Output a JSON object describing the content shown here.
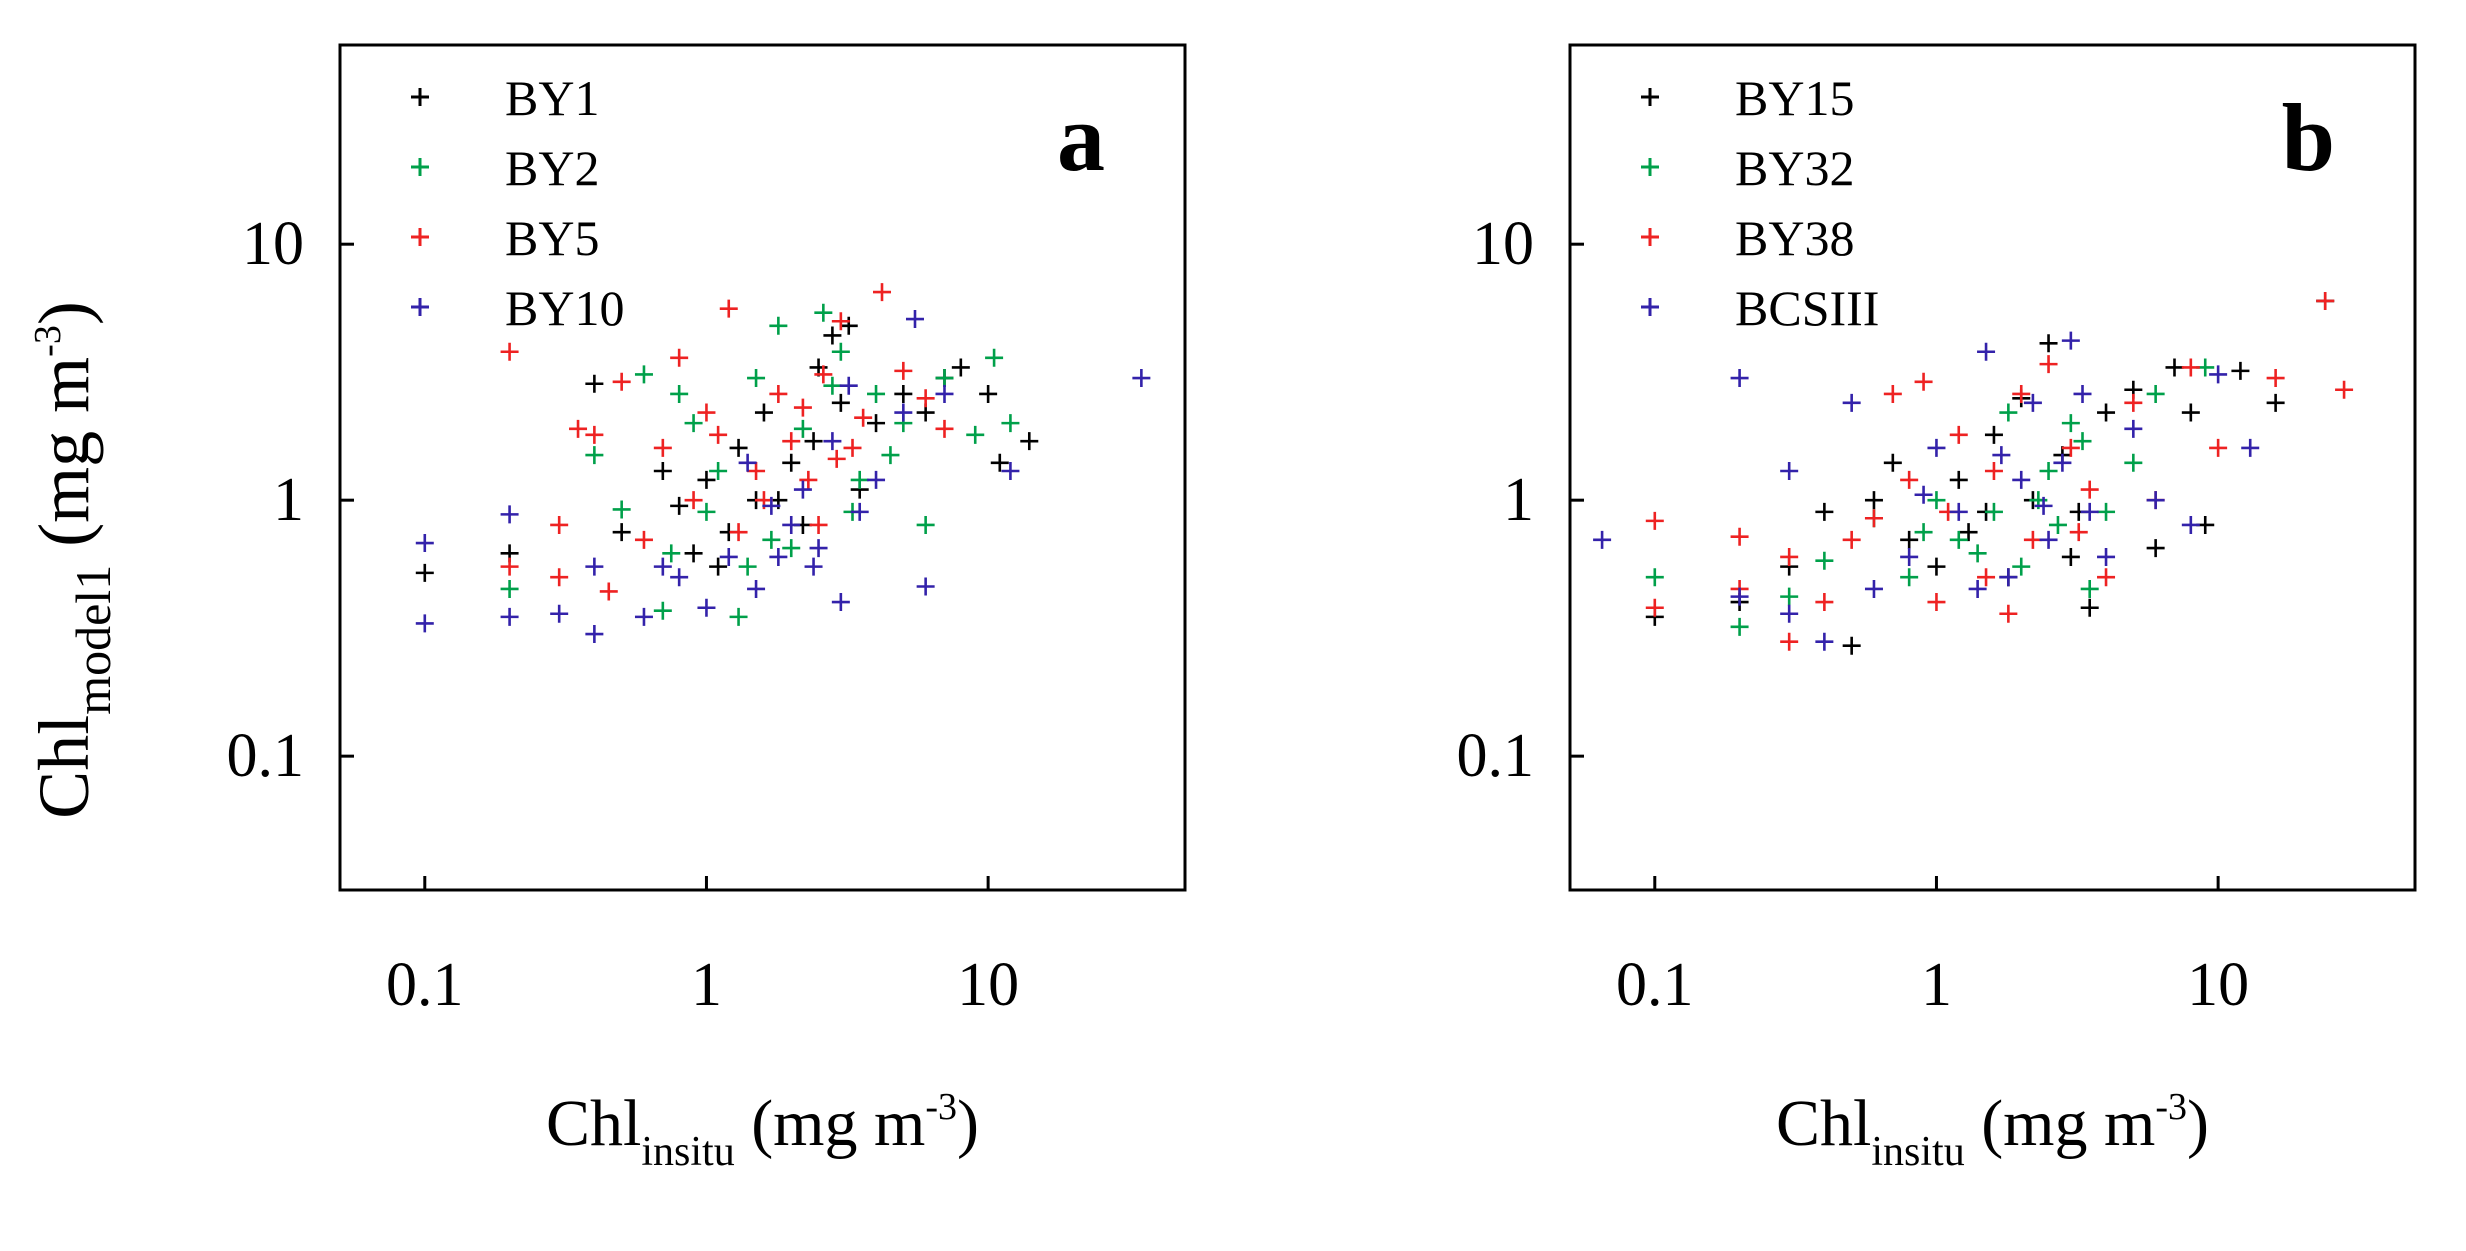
{
  "chart_data": [
    {
      "type": "scatter",
      "panel_label": "a",
      "xscale": "log",
      "yscale": "log",
      "xlim": [
        0.05,
        50
      ],
      "ylim": [
        0.03,
        60
      ],
      "xticks": [
        0.1,
        1,
        10
      ],
      "xtick_labels": [
        "0.1",
        "1",
        "10"
      ],
      "yticks": [
        0.1,
        1,
        10
      ],
      "ytick_labels": [
        "0.1",
        "1",
        "10"
      ],
      "xlabel": {
        "main": "Chl",
        "sub": "insitu",
        "rest": " (mg m",
        "sup": "-3",
        "end": ")"
      },
      "ylabel": {
        "main": "Chl",
        "sub": "model1",
        "rest": " (mg m",
        "sup": "-3",
        "end": ")"
      },
      "legend_position": "top-left",
      "series": [
        {
          "name": "BY1",
          "color": "#000000",
          "points": [
            [
              0.1,
              0.52
            ],
            [
              0.2,
              0.62
            ],
            [
              0.4,
              2.85
            ],
            [
              0.5,
              0.75
            ],
            [
              0.8,
              0.95
            ],
            [
              1.0,
              1.2
            ],
            [
              1.3,
              1.6
            ],
            [
              1.6,
              2.2
            ],
            [
              2.0,
              1.4
            ],
            [
              2.5,
              3.3
            ],
            [
              3.0,
              2.4
            ],
            [
              4.0,
              2.0
            ],
            [
              3.5,
              1.1
            ],
            [
              5.0,
              2.6
            ],
            [
              6.0,
              2.2
            ],
            [
              7.0,
              3.0
            ],
            [
              8.0,
              3.3
            ],
            [
              10.0,
              2.6
            ],
            [
              11.0,
              1.4
            ],
            [
              14.0,
              1.7
            ],
            [
              1.2,
              0.75
            ],
            [
              1.8,
              1.0
            ],
            [
              2.2,
              0.8
            ],
            [
              2.8,
              4.4
            ],
            [
              3.2,
              4.8
            ],
            [
              0.7,
              1.3
            ],
            [
              1.1,
              0.55
            ],
            [
              2.4,
              1.7
            ],
            [
              1.5,
              1.0
            ],
            [
              0.9,
              0.62
            ]
          ]
        },
        {
          "name": "BY2",
          "color": "#00a04a",
          "points": [
            [
              0.2,
              0.45
            ],
            [
              0.4,
              1.5
            ],
            [
              0.5,
              0.92
            ],
            [
              0.6,
              3.1
            ],
            [
              0.7,
              0.37
            ],
            [
              0.8,
              2.6
            ],
            [
              1.0,
              0.9
            ],
            [
              1.3,
              0.35
            ],
            [
              1.5,
              3.0
            ],
            [
              1.8,
              4.8
            ],
            [
              2.2,
              1.9
            ],
            [
              2.6,
              5.4
            ],
            [
              3.0,
              3.8
            ],
            [
              3.5,
              1.2
            ],
            [
              4.0,
              2.6
            ],
            [
              5.0,
              2.0
            ],
            [
              6.0,
              0.8
            ],
            [
              7.0,
              3.0
            ],
            [
              9.0,
              1.8
            ],
            [
              10.5,
              3.6
            ],
            [
              12.0,
              2.0
            ],
            [
              1.4,
              0.55
            ],
            [
              2.0,
              0.65
            ],
            [
              1.1,
              1.3
            ],
            [
              0.9,
              2.0
            ],
            [
              2.8,
              2.8
            ],
            [
              1.7,
              0.7
            ],
            [
              4.5,
              1.5
            ],
            [
              0.75,
              0.62
            ],
            [
              3.3,
              0.9
            ]
          ]
        },
        {
          "name": "BY5",
          "color": "#ee2222",
          "points": [
            [
              0.2,
              3.8
            ],
            [
              0.2,
              0.55
            ],
            [
              0.3,
              0.8
            ],
            [
              0.35,
              1.9
            ],
            [
              0.4,
              1.8
            ],
            [
              0.5,
              2.9
            ],
            [
              0.6,
              0.7
            ],
            [
              0.7,
              1.6
            ],
            [
              0.8,
              3.6
            ],
            [
              1.0,
              2.2
            ],
            [
              1.2,
              5.6
            ],
            [
              1.5,
              1.3
            ],
            [
              1.8,
              2.6
            ],
            [
              2.0,
              1.7
            ],
            [
              2.3,
              1.2
            ],
            [
              2.6,
              3.1
            ],
            [
              3.0,
              5.0
            ],
            [
              4.2,
              6.5
            ],
            [
              3.6,
              2.1
            ],
            [
              5.0,
              3.2
            ],
            [
              6.0,
              2.5
            ],
            [
              7.0,
              1.9
            ],
            [
              1.3,
              0.75
            ],
            [
              1.6,
              1.0
            ],
            [
              2.2,
              2.3
            ],
            [
              2.9,
              1.45
            ],
            [
              1.1,
              1.8
            ],
            [
              0.9,
              1.0
            ],
            [
              3.3,
              1.6
            ],
            [
              2.5,
              0.8
            ],
            [
              0.45,
              0.44
            ],
            [
              0.3,
              0.5
            ]
          ]
        },
        {
          "name": "BY10",
          "color": "#3322aa",
          "points": [
            [
              0.1,
              0.33
            ],
            [
              0.1,
              0.68
            ],
            [
              0.2,
              0.35
            ],
            [
              0.2,
              0.88
            ],
            [
              0.3,
              0.36
            ],
            [
              0.4,
              0.3
            ],
            [
              0.4,
              0.55
            ],
            [
              0.6,
              0.35
            ],
            [
              0.7,
              0.55
            ],
            [
              0.8,
              0.5
            ],
            [
              1.0,
              0.38
            ],
            [
              1.2,
              0.6
            ],
            [
              1.5,
              0.45
            ],
            [
              1.8,
              0.6
            ],
            [
              2.0,
              0.8
            ],
            [
              2.5,
              0.65
            ],
            [
              3.0,
              0.4
            ],
            [
              3.5,
              0.9
            ],
            [
              4.0,
              1.2
            ],
            [
              5.0,
              2.2
            ],
            [
              5.5,
              5.1
            ],
            [
              6.0,
              0.46
            ],
            [
              7.0,
              2.6
            ],
            [
              12.0,
              1.3
            ],
            [
              35.0,
              3.0
            ],
            [
              1.4,
              1.4
            ],
            [
              2.2,
              1.1
            ],
            [
              2.8,
              1.7
            ],
            [
              1.7,
              0.95
            ],
            [
              3.2,
              2.8
            ],
            [
              2.4,
              0.55
            ]
          ]
        }
      ]
    },
    {
      "type": "scatter",
      "panel_label": "b",
      "xscale": "log",
      "yscale": "log",
      "xlim": [
        0.05,
        50
      ],
      "ylim": [
        0.03,
        60
      ],
      "xticks": [
        0.1,
        1,
        10
      ],
      "xtick_labels": [
        "0.1",
        "1",
        "10"
      ],
      "yticks": [
        0.1,
        1,
        10
      ],
      "ytick_labels": [
        "0.1",
        "1",
        "10"
      ],
      "xlabel": {
        "main": "Chl",
        "sub": "insitu",
        "rest": " (mg m",
        "sup": "-3",
        "end": ")"
      },
      "legend_position": "top-left",
      "series": [
        {
          "name": "BY15",
          "color": "#000000",
          "points": [
            [
              0.1,
              0.35
            ],
            [
              0.2,
              0.4
            ],
            [
              0.3,
              0.55
            ],
            [
              0.4,
              0.9
            ],
            [
              0.5,
              0.27
            ],
            [
              0.6,
              1.0
            ],
            [
              0.8,
              0.7
            ],
            [
              1.0,
              0.55
            ],
            [
              1.2,
              1.2
            ],
            [
              1.5,
              0.9
            ],
            [
              1.8,
              0.5
            ],
            [
              2.0,
              2.5
            ],
            [
              2.5,
              4.1
            ],
            [
              3.0,
              0.6
            ],
            [
              3.5,
              0.38
            ],
            [
              4.0,
              2.2
            ],
            [
              5.0,
              2.7
            ],
            [
              6.0,
              0.65
            ],
            [
              7.0,
              3.3
            ],
            [
              8.0,
              2.2
            ],
            [
              9.0,
              0.8
            ],
            [
              12.0,
              3.2
            ],
            [
              16.0,
              2.4
            ],
            [
              24.0,
              6.0
            ],
            [
              2.2,
              1.0
            ],
            [
              2.8,
              1.5
            ],
            [
              1.3,
              0.75
            ],
            [
              0.7,
              1.4
            ],
            [
              3.2,
              0.9
            ],
            [
              1.6,
              1.8
            ]
          ]
        },
        {
          "name": "BY32",
          "color": "#00a04a",
          "points": [
            [
              0.1,
              0.5
            ],
            [
              0.2,
              0.32
            ],
            [
              0.3,
              0.42
            ],
            [
              0.4,
              0.58
            ],
            [
              0.6,
              0.85
            ],
            [
              0.8,
              0.5
            ],
            [
              1.0,
              1.0
            ],
            [
              1.2,
              0.7
            ],
            [
              1.6,
              0.9
            ],
            [
              2.0,
              0.55
            ],
            [
              2.5,
              1.3
            ],
            [
              3.0,
              2.0
            ],
            [
              3.5,
              0.45
            ],
            [
              4.0,
              0.9
            ],
            [
              5.0,
              1.4
            ],
            [
              6.0,
              2.6
            ],
            [
              9.0,
              3.3
            ],
            [
              1.4,
              0.62
            ],
            [
              2.3,
              1.0
            ],
            [
              0.9,
              0.75
            ],
            [
              3.3,
              1.7
            ],
            [
              1.8,
              2.2
            ],
            [
              2.7,
              0.8
            ]
          ]
        },
        {
          "name": "BY38",
          "color": "#ee2222",
          "points": [
            [
              0.1,
              0.38
            ],
            [
              0.1,
              0.83
            ],
            [
              0.2,
              0.45
            ],
            [
              0.2,
              0.72
            ],
            [
              0.3,
              0.28
            ],
            [
              0.3,
              0.6
            ],
            [
              0.4,
              0.4
            ],
            [
              0.5,
              0.7
            ],
            [
              0.6,
              0.85
            ],
            [
              0.7,
              2.6
            ],
            [
              0.9,
              2.9
            ],
            [
              1.0,
              0.4
            ],
            [
              1.2,
              1.8
            ],
            [
              1.5,
              0.5
            ],
            [
              1.8,
              0.36
            ],
            [
              2.0,
              2.6
            ],
            [
              2.5,
              3.4
            ],
            [
              3.0,
              1.6
            ],
            [
              3.5,
              1.1
            ],
            [
              4.0,
              0.5
            ],
            [
              5.0,
              2.4
            ],
            [
              6.0,
              1.0
            ],
            [
              8.0,
              3.3
            ],
            [
              10.0,
              1.6
            ],
            [
              16.0,
              3.0
            ],
            [
              24.0,
              6.0
            ],
            [
              28.0,
              2.7
            ],
            [
              1.1,
              0.9
            ],
            [
              2.2,
              0.7
            ],
            [
              1.6,
              1.3
            ],
            [
              0.8,
              1.2
            ],
            [
              3.2,
              0.75
            ]
          ]
        },
        {
          "name": "BCSIII",
          "color": "#3322aa",
          "points": [
            [
              0.065,
              0.7
            ],
            [
              0.2,
              3.0
            ],
            [
              0.2,
              0.42
            ],
            [
              0.3,
              1.3
            ],
            [
              0.3,
              0.36
            ],
            [
              0.4,
              0.28
            ],
            [
              0.5,
              2.4
            ],
            [
              0.6,
              0.45
            ],
            [
              0.8,
              0.6
            ],
            [
              1.0,
              1.6
            ],
            [
              1.2,
              0.9
            ],
            [
              1.5,
              3.8
            ],
            [
              1.8,
              0.5
            ],
            [
              2.0,
              1.2
            ],
            [
              2.5,
              0.7
            ],
            [
              3.0,
              4.2
            ],
            [
              3.5,
              0.9
            ],
            [
              4.0,
              0.6
            ],
            [
              5.0,
              1.9
            ],
            [
              6.0,
              1.0
            ],
            [
              8.0,
              0.8
            ],
            [
              10.0,
              3.1
            ],
            [
              13.0,
              1.6
            ],
            [
              2.2,
              2.4
            ],
            [
              2.8,
              1.4
            ],
            [
              1.4,
              0.45
            ],
            [
              3.3,
              2.6
            ],
            [
              0.9,
              1.05
            ],
            [
              1.7,
              1.5
            ],
            [
              2.4,
              0.95
            ]
          ]
        }
      ]
    }
  ]
}
